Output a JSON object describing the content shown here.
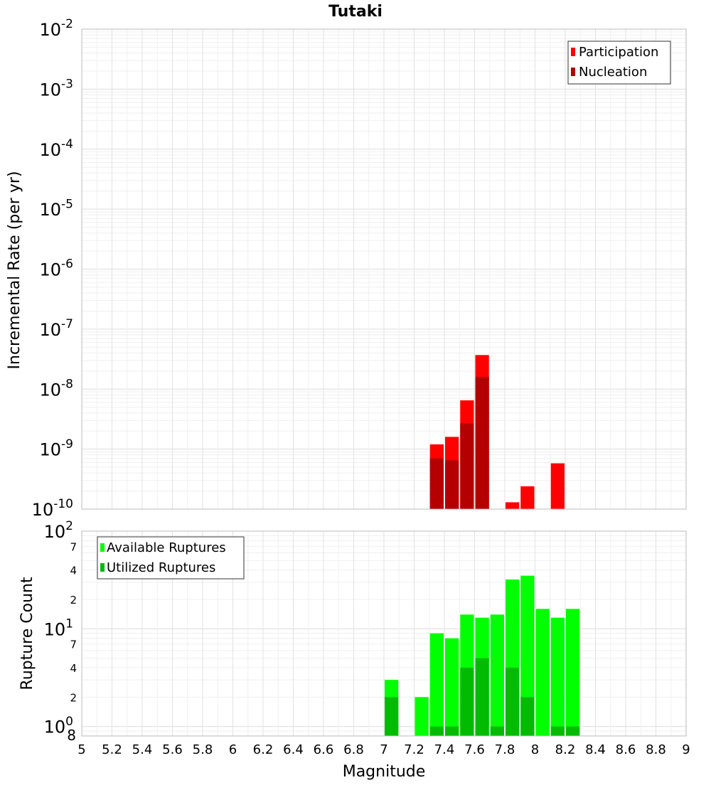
{
  "chart_data": [
    {
      "type": "bar",
      "title": "Tutaki",
      "xlabel": "",
      "ylabel": "Incremental Rate (per yr)",
      "y_scale": "log",
      "ylim": [
        1e-10,
        0.01
      ],
      "xlim": [
        5,
        9
      ],
      "grid": true,
      "legend_position": "top-right",
      "y_ticks": [
        {
          "base": "10",
          "exp": "-2",
          "value": 0.01
        },
        {
          "base": "10",
          "exp": "-3",
          "value": 0.001
        },
        {
          "base": "10",
          "exp": "-4",
          "value": 0.0001
        },
        {
          "base": "10",
          "exp": "-5",
          "value": 1e-05
        },
        {
          "base": "10",
          "exp": "-6",
          "value": 1e-06
        },
        {
          "base": "10",
          "exp": "-7",
          "value": 1e-07
        },
        {
          "base": "10",
          "exp": "-8",
          "value": 1e-08
        },
        {
          "base": "10",
          "exp": "-9",
          "value": 1e-09
        },
        {
          "base": "10",
          "exp": "-10",
          "value": 1e-10
        }
      ],
      "bar_width": 0.1,
      "series": [
        {
          "name": "Participation",
          "color": "#ff0000",
          "points": [
            {
              "x": 7.35,
              "y": 1.2e-09
            },
            {
              "x": 7.45,
              "y": 1.6e-09
            },
            {
              "x": 7.55,
              "y": 6.5e-09
            },
            {
              "x": 7.65,
              "y": 3.7e-08
            },
            {
              "x": 7.85,
              "y": 1.3e-10
            },
            {
              "x": 7.95,
              "y": 2.4e-10
            },
            {
              "x": 8.15,
              "y": 5.8e-10
            }
          ]
        },
        {
          "name": "Nucleation",
          "color": "#b40000",
          "points": [
            {
              "x": 7.35,
              "y": 7e-10
            },
            {
              "x": 7.45,
              "y": 6.5e-10
            },
            {
              "x": 7.55,
              "y": 2.7e-09
            },
            {
              "x": 7.65,
              "y": 1.6e-08
            }
          ]
        }
      ]
    },
    {
      "type": "bar",
      "title": "",
      "xlabel": "Magnitude",
      "ylabel": "Rupture Count",
      "y_scale": "log",
      "ylim": [
        0.8,
        100
      ],
      "xlim": [
        5,
        9
      ],
      "grid": true,
      "legend_position": "top-left",
      "x_ticks": [
        "5",
        "5.2",
        "5.4",
        "5.6",
        "5.8",
        "6",
        "6.2",
        "6.4",
        "6.6",
        "6.8",
        "7",
        "7.2",
        "7.4",
        "7.6",
        "7.8",
        "8",
        "8.2",
        "8.4",
        "8.6",
        "8.8",
        "9"
      ],
      "y_major_ticks": [
        {
          "base": "10",
          "exp": "2",
          "value": 100
        },
        {
          "base": "10",
          "exp": "1",
          "value": 10
        },
        {
          "base": "10",
          "exp": "0",
          "value": 1
        }
      ],
      "y_minor_ticks": [
        {
          "label": "7",
          "value": 70
        },
        {
          "label": "4",
          "value": 40
        },
        {
          "label": "2",
          "value": 20
        },
        {
          "label": "7",
          "value": 7
        },
        {
          "label": "4",
          "value": 4
        },
        {
          "label": "2",
          "value": 2
        },
        {
          "label": "8",
          "value": 0.8
        }
      ],
      "bar_width": 0.1,
      "series": [
        {
          "name": "Available Ruptures",
          "color": "#00ff00",
          "points": [
            {
              "x": 7.05,
              "y": 3
            },
            {
              "x": 7.25,
              "y": 2
            },
            {
              "x": 7.35,
              "y": 9
            },
            {
              "x": 7.45,
              "y": 8
            },
            {
              "x": 7.55,
              "y": 14
            },
            {
              "x": 7.65,
              "y": 13
            },
            {
              "x": 7.75,
              "y": 14
            },
            {
              "x": 7.85,
              "y": 32
            },
            {
              "x": 7.95,
              "y": 35
            },
            {
              "x": 8.05,
              "y": 16
            },
            {
              "x": 8.15,
              "y": 13
            },
            {
              "x": 8.25,
              "y": 16
            }
          ]
        },
        {
          "name": "Utilized Ruptures",
          "color": "#00bb00",
          "points": [
            {
              "x": 7.05,
              "y": 2
            },
            {
              "x": 7.35,
              "y": 1
            },
            {
              "x": 7.45,
              "y": 1
            },
            {
              "x": 7.55,
              "y": 4
            },
            {
              "x": 7.65,
              "y": 5
            },
            {
              "x": 7.75,
              "y": 1
            },
            {
              "x": 7.85,
              "y": 4
            },
            {
              "x": 7.95,
              "y": 2
            },
            {
              "x": 8.15,
              "y": 1
            },
            {
              "x": 8.25,
              "y": 1
            }
          ]
        }
      ]
    }
  ]
}
